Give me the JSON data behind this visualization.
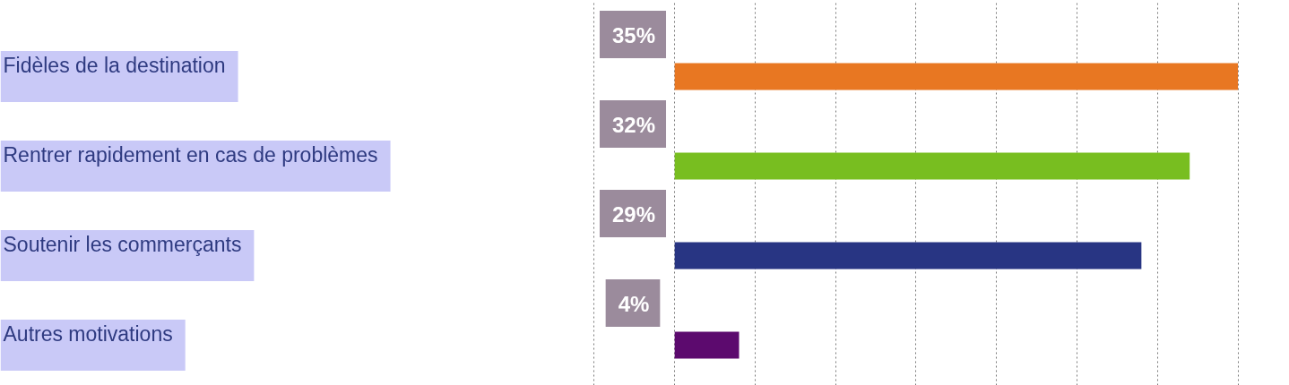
{
  "chart_data": {
    "type": "bar",
    "orientation": "horizontal",
    "categories": [
      "Fidèles de la destination",
      "Rentrer rapidement en cas de problèmes",
      "Soutenir les commerçants",
      "Autres motivations"
    ],
    "values": [
      35,
      32,
      29,
      4
    ],
    "colors": [
      "#e87722",
      "#78be20",
      "#283583",
      "#5c0a6e"
    ],
    "value_labels": [
      "35%",
      "32%",
      "29%",
      "4%"
    ],
    "grid": "x",
    "tick_labels": false
  }
}
